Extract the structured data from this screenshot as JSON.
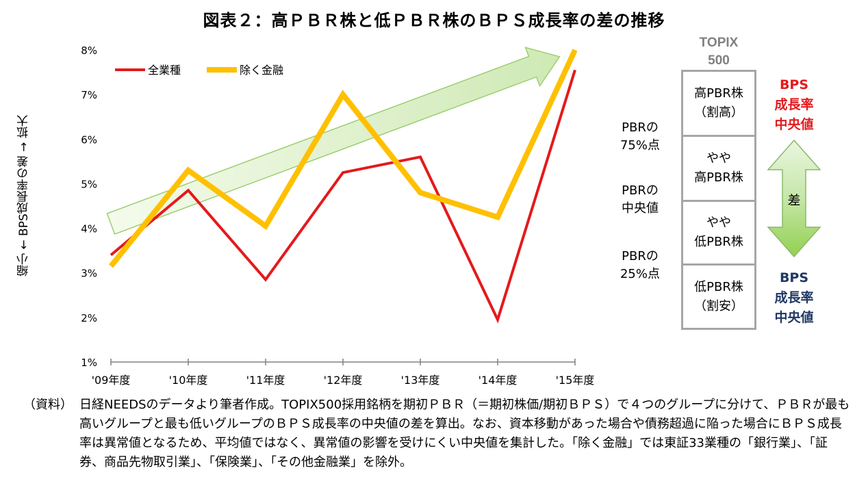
{
  "title": "図表２：高ＰＢＲ株と低ＰＢＲ株のＢＰＳ成長率の差の推移",
  "chart_data": {
    "type": "line",
    "categories": [
      "'09年度",
      "'10年度",
      "'11年度",
      "'12年度",
      "'13年度",
      "'14年度",
      "'15年度"
    ],
    "series": [
      {
        "name": "全業種",
        "color": "#e31a1c",
        "values": [
          3.4,
          4.85,
          2.85,
          5.25,
          5.6,
          1.95,
          7.55
        ]
      },
      {
        "name": "除く金融",
        "color": "#ffc000",
        "values": [
          3.15,
          5.3,
          4.05,
          7.0,
          4.8,
          4.25,
          8.0
        ]
      }
    ],
    "ylim": [
      1,
      8
    ],
    "yticks": [
      "1%",
      "2%",
      "3%",
      "4%",
      "5%",
      "6%",
      "7%",
      "8%"
    ],
    "ylabel": "縮小 ← BPS成長率の差 → 拡大",
    "legend": "top-left",
    "grid": false,
    "trend_arrow": {
      "from": [
        0,
        4.1
      ],
      "to": [
        5.8,
        7.85
      ],
      "color": "#92d050"
    }
  },
  "diagram": {
    "header_line1": "TOPIX",
    "header_line2": "500",
    "boxes": [
      {
        "line1": "高PBR株",
        "line2": "（割高）",
        "color": "#e6b9b8"
      },
      {
        "line1": "やや",
        "line2": "高PBR株",
        "color": "#fce4d6"
      },
      {
        "line1": "やや",
        "line2": "低PBR株",
        "color": "#dbeef4"
      },
      {
        "line1": "低PBR株",
        "line2": "（割安）",
        "color": "#b8cce4"
      }
    ],
    "pct_labels": [
      {
        "line1": "PBRの",
        "line2": "75%点"
      },
      {
        "line1": "PBRの",
        "line2": "中央値"
      },
      {
        "line1": "PBRの",
        "line2": "25%点"
      }
    ],
    "top_bps": {
      "line1": "BPS",
      "line2": "成長率",
      "line3": "中央値",
      "color": "#e31a1c"
    },
    "bottom_bps": {
      "line1": "BPS",
      "line2": "成長率",
      "line3": "中央値",
      "color": "#1f3864"
    },
    "diff_label": "差"
  },
  "note": {
    "label": "（資料）",
    "text": "日経NEEDSのデータより筆者作成。TOPIX500採用銘柄を期初ＰＢＲ（＝期初株価/期初ＢＰＳ）で４つのグループに分けて、ＰＢＲが最も高いグループと最も低いグループのＢＰＳ成長率の中央値の差を算出。なお、資本移動があった場合や債務超過に陥った場合にＢＰＳ成長率は異常値となるため、平均値ではなく、異常値の影響を受けにくい中央値を集計した。「除く金融」では東証33業種の「銀行業」、「証券、商品先物取引業」、「保険業」、「その他金融業」を除外。"
  }
}
